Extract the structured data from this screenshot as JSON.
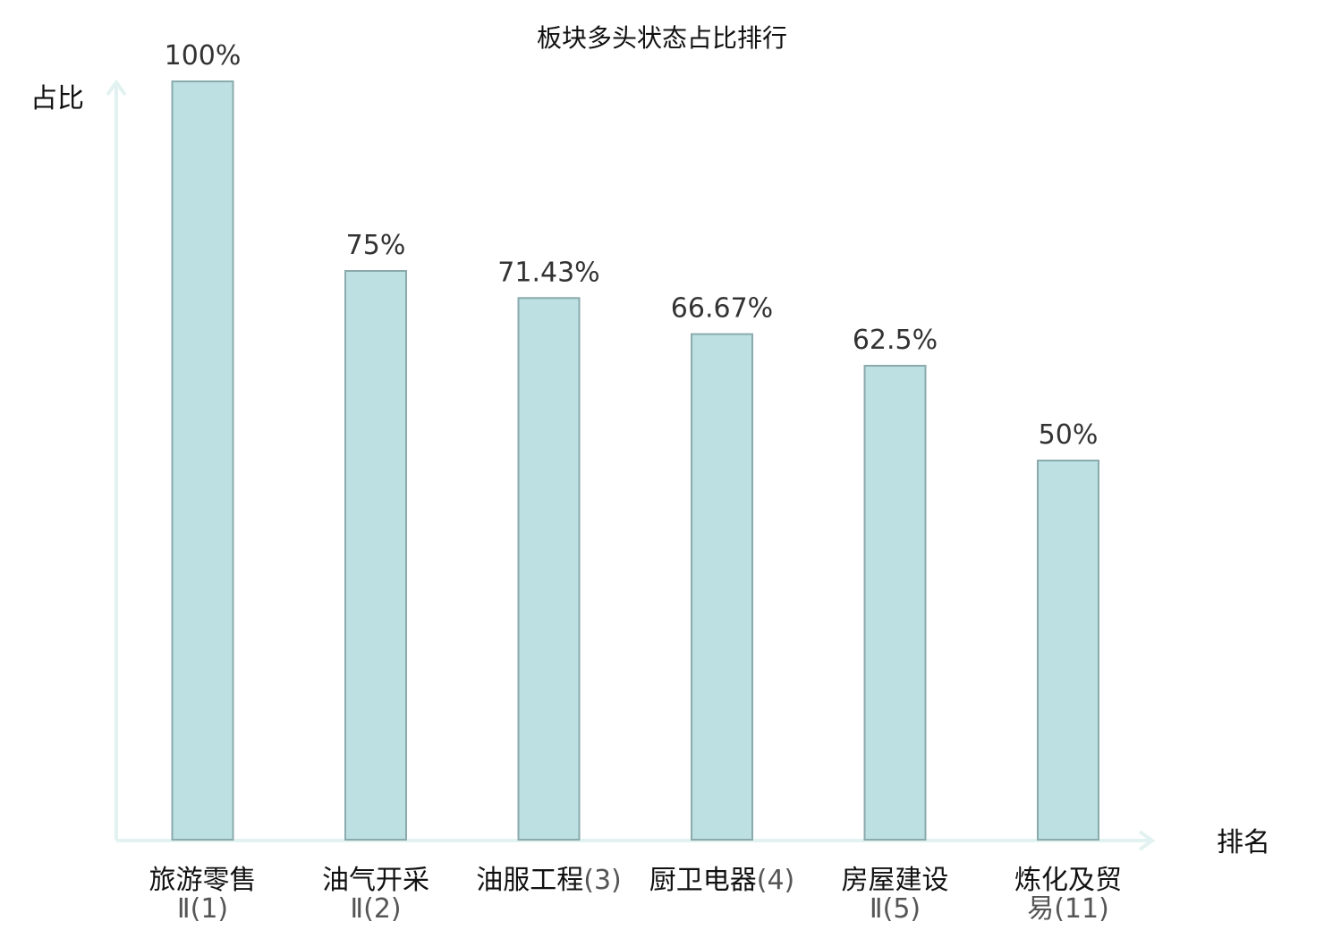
{
  "chart_data": {
    "type": "bar",
    "title": "板块多头状态占比排行",
    "ylabel": "占比",
    "xlabel": "排名",
    "ylim": [
      0,
      100
    ],
    "grid": false,
    "legend": "none",
    "bar_color": "#bde0e3",
    "bar_edge_color": "#8aaaad",
    "axis_color": "#e2f2f1",
    "highlight_color": "#e8262b",
    "categories": [
      {
        "name": "旅游零售",
        "rank": "Ⅱ(1)",
        "multiline": true,
        "highlight": false
      },
      {
        "name": "油气开采",
        "rank": "Ⅱ(2)",
        "multiline": true,
        "highlight": false
      },
      {
        "name": "油服工程",
        "rank": "(3)",
        "multiline": false,
        "highlight": false
      },
      {
        "name": "厨卫电器",
        "rank": "(4)",
        "multiline": false,
        "highlight": false
      },
      {
        "name": "房屋建设",
        "rank": "Ⅱ(5)",
        "multiline": true,
        "highlight": false
      },
      {
        "name": "炼化及贸",
        "rank": "易(11)",
        "multiline": true,
        "highlight": true
      }
    ],
    "values": [
      100,
      75,
      71.43,
      66.67,
      62.5,
      50
    ],
    "value_labels": [
      "100%",
      "75%",
      "71.43%",
      "66.67%",
      "62.5%",
      "50%"
    ]
  }
}
